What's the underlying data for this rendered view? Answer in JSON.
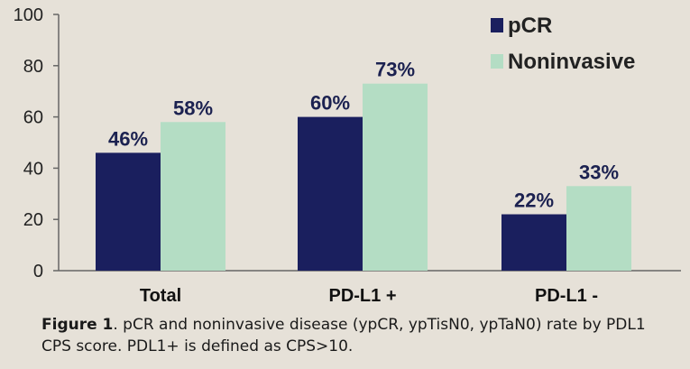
{
  "chart_data": {
    "type": "bar",
    "categories": [
      "Total",
      "PD-L1 +",
      "PD-L1 -"
    ],
    "series": [
      {
        "name": "pCR",
        "values": [
          46,
          60,
          22
        ],
        "labels": [
          "46%",
          "60%",
          "22%"
        ],
        "color": "#1a1f5e"
      },
      {
        "name": "Noninvasive",
        "values": [
          58,
          73,
          33
        ],
        "labels": [
          "58%",
          "73%",
          "33%"
        ],
        "color": "#b4ddc4"
      }
    ],
    "ylim": [
      0,
      100
    ],
    "yticks": [
      "0",
      "20",
      "40",
      "60",
      "80",
      "100"
    ],
    "legend_position": "top-right",
    "grid": false
  },
  "caption": {
    "label": "Figure 1",
    "text": ". pCR and noninvasive disease (ypCR, ypTisN0, ypTaN0) rate by PDL1 CPS score. PDL1+ is defined as CPS>10."
  }
}
